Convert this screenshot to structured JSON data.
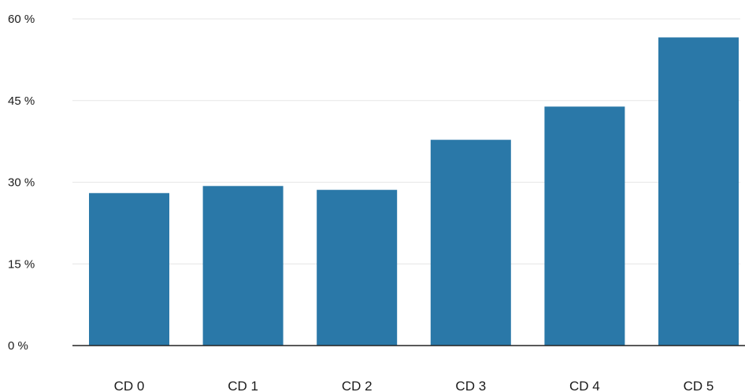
{
  "chart_data": {
    "type": "bar",
    "categories": [
      "CD 0",
      "CD 1",
      "CD 2",
      "CD 3",
      "CD 4",
      "CD 5"
    ],
    "values": [
      28,
      29.3,
      28.6,
      37.8,
      43.9,
      56.6
    ],
    "ylim": [
      0,
      60
    ],
    "yticks": [
      0,
      15,
      30,
      45,
      60
    ],
    "ytick_labels": [
      "0 %",
      "15 %",
      "30 %",
      "45 %",
      "60 %"
    ],
    "title": "",
    "xlabel": "",
    "ylabel": "",
    "grid": true,
    "bar_color": "#2a78a8"
  }
}
